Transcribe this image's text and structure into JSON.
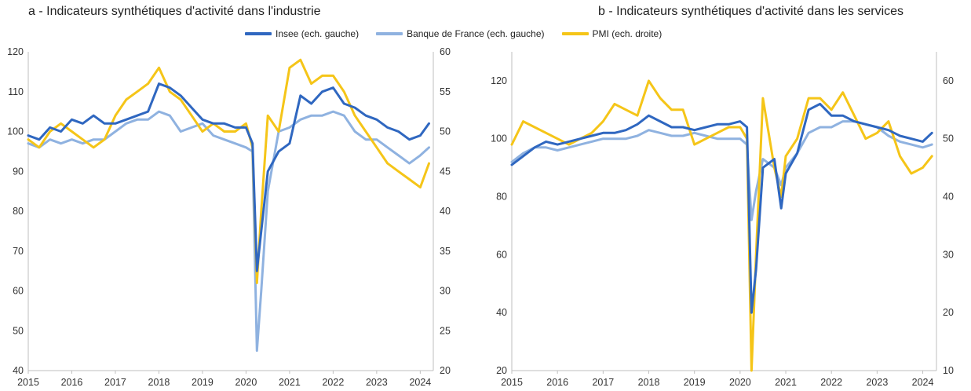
{
  "legend": [
    {
      "label": "Insee (ech. gauche)",
      "color": "#2f67c0"
    },
    {
      "label": "Banque de France (ech. gauche)",
      "color": "#8fb2e0"
    },
    {
      "label": "PMI (ech. droite)",
      "color": "#f5c518"
    }
  ],
  "chart_data": [
    {
      "type": "line",
      "title": "a - Indicateurs synthétiques d'activité dans l'industrie",
      "x_ticks": [
        "2015",
        "2016",
        "2017",
        "2018",
        "2019",
        "2020",
        "2021",
        "2022",
        "2023",
        "2024"
      ],
      "xlim": [
        2015.0,
        2024.3
      ],
      "y_left": {
        "lim": [
          40,
          120
        ],
        "ticks": [
          40,
          50,
          60,
          70,
          80,
          90,
          100,
          110,
          120
        ]
      },
      "y_right": {
        "lim": [
          20,
          60
        ],
        "ticks": [
          20,
          25,
          30,
          35,
          40,
          45,
          50,
          55,
          60
        ]
      },
      "grid": false,
      "legend_position": "top",
      "series": [
        {
          "name": "Insee (ech. gauche)",
          "axis": "left",
          "color": "#2f67c0",
          "points": [
            [
              2015.0,
              99
            ],
            [
              2015.25,
              98
            ],
            [
              2015.5,
              101
            ],
            [
              2015.75,
              100
            ],
            [
              2016.0,
              103
            ],
            [
              2016.25,
              102
            ],
            [
              2016.5,
              104
            ],
            [
              2016.75,
              102
            ],
            [
              2017.0,
              102
            ],
            [
              2017.25,
              103
            ],
            [
              2017.5,
              104
            ],
            [
              2017.75,
              105
            ],
            [
              2018.0,
              112
            ],
            [
              2018.25,
              111
            ],
            [
              2018.5,
              109
            ],
            [
              2018.75,
              106
            ],
            [
              2019.0,
              103
            ],
            [
              2019.25,
              102
            ],
            [
              2019.5,
              102
            ],
            [
              2019.75,
              101
            ],
            [
              2020.0,
              101
            ],
            [
              2020.15,
              97
            ],
            [
              2020.25,
              65
            ],
            [
              2020.35,
              75
            ],
            [
              2020.5,
              90
            ],
            [
              2020.75,
              95
            ],
            [
              2021.0,
              97
            ],
            [
              2021.25,
              109
            ],
            [
              2021.5,
              107
            ],
            [
              2021.75,
              110
            ],
            [
              2022.0,
              111
            ],
            [
              2022.25,
              107
            ],
            [
              2022.5,
              106
            ],
            [
              2022.75,
              104
            ],
            [
              2023.0,
              103
            ],
            [
              2023.25,
              101
            ],
            [
              2023.5,
              100
            ],
            [
              2023.75,
              98
            ],
            [
              2024.0,
              99
            ],
            [
              2024.2,
              102
            ]
          ]
        },
        {
          "name": "Banque de France (ech. gauche)",
          "axis": "left",
          "color": "#8fb2e0",
          "points": [
            [
              2015.0,
              97
            ],
            [
              2015.25,
              96
            ],
            [
              2015.5,
              98
            ],
            [
              2015.75,
              97
            ],
            [
              2016.0,
              98
            ],
            [
              2016.25,
              97
            ],
            [
              2016.5,
              98
            ],
            [
              2016.75,
              98
            ],
            [
              2017.0,
              100
            ],
            [
              2017.25,
              102
            ],
            [
              2017.5,
              103
            ],
            [
              2017.75,
              103
            ],
            [
              2018.0,
              105
            ],
            [
              2018.25,
              104
            ],
            [
              2018.5,
              100
            ],
            [
              2018.75,
              101
            ],
            [
              2019.0,
              102
            ],
            [
              2019.25,
              99
            ],
            [
              2019.5,
              98
            ],
            [
              2019.75,
              97
            ],
            [
              2020.0,
              96
            ],
            [
              2020.15,
              95
            ],
            [
              2020.25,
              45
            ],
            [
              2020.35,
              60
            ],
            [
              2020.5,
              85
            ],
            [
              2020.75,
              100
            ],
            [
              2021.0,
              101
            ],
            [
              2021.25,
              103
            ],
            [
              2021.5,
              104
            ],
            [
              2021.75,
              104
            ],
            [
              2022.0,
              105
            ],
            [
              2022.25,
              104
            ],
            [
              2022.5,
              100
            ],
            [
              2022.75,
              98
            ],
            [
              2023.0,
              98
            ],
            [
              2023.25,
              96
            ],
            [
              2023.5,
              94
            ],
            [
              2023.75,
              92
            ],
            [
              2024.0,
              94
            ],
            [
              2024.2,
              96
            ]
          ]
        },
        {
          "name": "PMI (ech. droite)",
          "axis": "right",
          "color": "#f5c518",
          "points": [
            [
              2015.0,
              49
            ],
            [
              2015.25,
              48
            ],
            [
              2015.5,
              50
            ],
            [
              2015.75,
              51
            ],
            [
              2016.0,
              50
            ],
            [
              2016.25,
              49
            ],
            [
              2016.5,
              48
            ],
            [
              2016.75,
              49
            ],
            [
              2017.0,
              52
            ],
            [
              2017.25,
              54
            ],
            [
              2017.5,
              55
            ],
            [
              2017.75,
              56
            ],
            [
              2018.0,
              58
            ],
            [
              2018.25,
              55
            ],
            [
              2018.5,
              54
            ],
            [
              2018.75,
              52
            ],
            [
              2019.0,
              50
            ],
            [
              2019.25,
              51
            ],
            [
              2019.5,
              50
            ],
            [
              2019.75,
              50
            ],
            [
              2020.0,
              51
            ],
            [
              2020.15,
              48
            ],
            [
              2020.25,
              31
            ],
            [
              2020.35,
              40
            ],
            [
              2020.5,
              52
            ],
            [
              2020.75,
              50
            ],
            [
              2021.0,
              58
            ],
            [
              2021.25,
              59
            ],
            [
              2021.5,
              56
            ],
            [
              2021.75,
              57
            ],
            [
              2022.0,
              57
            ],
            [
              2022.25,
              55
            ],
            [
              2022.5,
              52
            ],
            [
              2022.75,
              50
            ],
            [
              2023.0,
              48
            ],
            [
              2023.25,
              46
            ],
            [
              2023.5,
              45
            ],
            [
              2023.75,
              44
            ],
            [
              2024.0,
              43
            ],
            [
              2024.2,
              46
            ]
          ]
        }
      ]
    },
    {
      "type": "line",
      "title": "b - Indicateurs synthétiques d'activité dans les services",
      "x_ticks": [
        "2015",
        "2016",
        "2017",
        "2018",
        "2019",
        "2020",
        "2021",
        "2022",
        "2023",
        "2024"
      ],
      "xlim": [
        2015.0,
        2024.3
      ],
      "y_left": {
        "lim": [
          20,
          130
        ],
        "ticks": [
          20,
          40,
          60,
          80,
          100,
          120
        ]
      },
      "y_right": {
        "lim": [
          10,
          65
        ],
        "ticks": [
          10,
          20,
          30,
          40,
          50,
          60
        ]
      },
      "grid": false,
      "legend_position": "top",
      "series": [
        {
          "name": "Insee (ech. gauche)",
          "axis": "left",
          "color": "#2f67c0",
          "points": [
            [
              2015.0,
              91
            ],
            [
              2015.25,
              94
            ],
            [
              2015.5,
              97
            ],
            [
              2015.75,
              99
            ],
            [
              2016.0,
              98
            ],
            [
              2016.25,
              99
            ],
            [
              2016.5,
              100
            ],
            [
              2016.75,
              101
            ],
            [
              2017.0,
              102
            ],
            [
              2017.25,
              102
            ],
            [
              2017.5,
              103
            ],
            [
              2017.75,
              105
            ],
            [
              2018.0,
              108
            ],
            [
              2018.25,
              106
            ],
            [
              2018.5,
              104
            ],
            [
              2018.75,
              104
            ],
            [
              2019.0,
              103
            ],
            [
              2019.25,
              104
            ],
            [
              2019.5,
              105
            ],
            [
              2019.75,
              105
            ],
            [
              2020.0,
              106
            ],
            [
              2020.15,
              104
            ],
            [
              2020.25,
              40
            ],
            [
              2020.35,
              55
            ],
            [
              2020.5,
              90
            ],
            [
              2020.75,
              93
            ],
            [
              2020.9,
              76
            ],
            [
              2021.0,
              88
            ],
            [
              2021.25,
              95
            ],
            [
              2021.5,
              110
            ],
            [
              2021.75,
              112
            ],
            [
              2022.0,
              108
            ],
            [
              2022.25,
              108
            ],
            [
              2022.5,
              106
            ],
            [
              2022.75,
              105
            ],
            [
              2023.0,
              104
            ],
            [
              2023.25,
              103
            ],
            [
              2023.5,
              101
            ],
            [
              2023.75,
              100
            ],
            [
              2024.0,
              99
            ],
            [
              2024.2,
              102
            ]
          ]
        },
        {
          "name": "Banque de France (ech. gauche)",
          "axis": "left",
          "color": "#8fb2e0",
          "points": [
            [
              2015.0,
              92
            ],
            [
              2015.25,
              95
            ],
            [
              2015.5,
              97
            ],
            [
              2015.75,
              97
            ],
            [
              2016.0,
              96
            ],
            [
              2016.25,
              97
            ],
            [
              2016.5,
              98
            ],
            [
              2016.75,
              99
            ],
            [
              2017.0,
              100
            ],
            [
              2017.25,
              100
            ],
            [
              2017.5,
              100
            ],
            [
              2017.75,
              101
            ],
            [
              2018.0,
              103
            ],
            [
              2018.25,
              102
            ],
            [
              2018.5,
              101
            ],
            [
              2018.75,
              101
            ],
            [
              2019.0,
              102
            ],
            [
              2019.25,
              101
            ],
            [
              2019.5,
              100
            ],
            [
              2019.75,
              100
            ],
            [
              2020.0,
              100
            ],
            [
              2020.15,
              98
            ],
            [
              2020.25,
              72
            ],
            [
              2020.35,
              82
            ],
            [
              2020.5,
              93
            ],
            [
              2020.75,
              90
            ],
            [
              2020.9,
              84
            ],
            [
              2021.0,
              90
            ],
            [
              2021.25,
              95
            ],
            [
              2021.5,
              102
            ],
            [
              2021.75,
              104
            ],
            [
              2022.0,
              104
            ],
            [
              2022.25,
              106
            ],
            [
              2022.5,
              106
            ],
            [
              2022.75,
              105
            ],
            [
              2023.0,
              104
            ],
            [
              2023.25,
              101
            ],
            [
              2023.5,
              99
            ],
            [
              2023.75,
              98
            ],
            [
              2024.0,
              97
            ],
            [
              2024.2,
              98
            ]
          ]
        },
        {
          "name": "PMI (ech. droite)",
          "axis": "right",
          "color": "#f5c518",
          "points": [
            [
              2015.0,
              49
            ],
            [
              2015.25,
              53
            ],
            [
              2015.5,
              52
            ],
            [
              2015.75,
              51
            ],
            [
              2016.0,
              50
            ],
            [
              2016.25,
              49
            ],
            [
              2016.5,
              50
            ],
            [
              2016.75,
              51
            ],
            [
              2017.0,
              53
            ],
            [
              2017.25,
              56
            ],
            [
              2017.5,
              55
            ],
            [
              2017.75,
              54
            ],
            [
              2018.0,
              60
            ],
            [
              2018.25,
              57
            ],
            [
              2018.5,
              55
            ],
            [
              2018.75,
              55
            ],
            [
              2019.0,
              49
            ],
            [
              2019.25,
              50
            ],
            [
              2019.5,
              51
            ],
            [
              2019.75,
              52
            ],
            [
              2020.0,
              52
            ],
            [
              2020.15,
              50
            ],
            [
              2020.25,
              10
            ],
            [
              2020.35,
              30
            ],
            [
              2020.5,
              57
            ],
            [
              2020.75,
              45
            ],
            [
              2020.9,
              40
            ],
            [
              2021.0,
              47
            ],
            [
              2021.25,
              50
            ],
            [
              2021.5,
              57
            ],
            [
              2021.75,
              57
            ],
            [
              2022.0,
              55
            ],
            [
              2022.25,
              58
            ],
            [
              2022.5,
              54
            ],
            [
              2022.75,
              50
            ],
            [
              2023.0,
              51
            ],
            [
              2023.25,
              53
            ],
            [
              2023.5,
              47
            ],
            [
              2023.75,
              44
            ],
            [
              2024.0,
              45
            ],
            [
              2024.2,
              47
            ]
          ]
        }
      ]
    }
  ]
}
